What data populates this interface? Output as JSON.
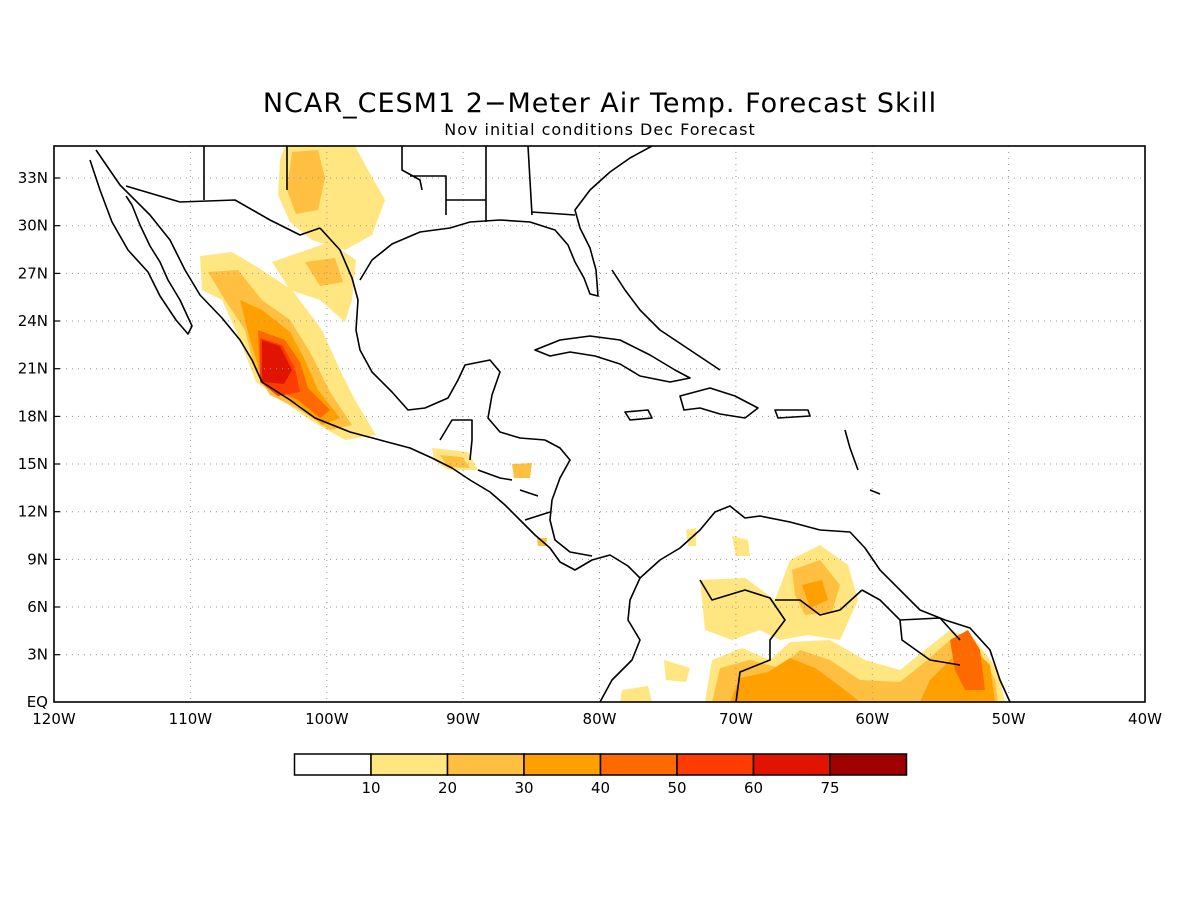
{
  "title": "NCAR_CESM1 2−Meter Air Temp. Forecast Skill",
  "subtitle": "Nov initial conditions  Dec Forecast",
  "map": {
    "lon_range": [
      -120,
      -40
    ],
    "lat_range": [
      0,
      35
    ],
    "lat_labels": [
      "33N",
      "30N",
      "27N",
      "24N",
      "21N",
      "18N",
      "15N",
      "12N",
      "9N",
      "6N",
      "3N",
      "EQ"
    ],
    "lat_values": [
      33,
      30,
      27,
      24,
      21,
      18,
      15,
      12,
      9,
      6,
      3,
      0
    ],
    "lon_labels": [
      "120W",
      "110W",
      "100W",
      "90W",
      "80W",
      "70W",
      "60W",
      "50W",
      "40W"
    ],
    "lon_values": [
      -120,
      -110,
      -100,
      -90,
      -80,
      -70,
      -60,
      -50,
      -40
    ],
    "grid": "dotted"
  },
  "colorbar": {
    "labels": [
      "10",
      "20",
      "30",
      "40",
      "50",
      "60",
      "75"
    ],
    "colors": [
      "#ffffff",
      "#ffe680",
      "#ffbf40",
      "#ffa000",
      "#ff6a00",
      "#ff3c00",
      "#e01400",
      "#a00000"
    ]
  }
}
